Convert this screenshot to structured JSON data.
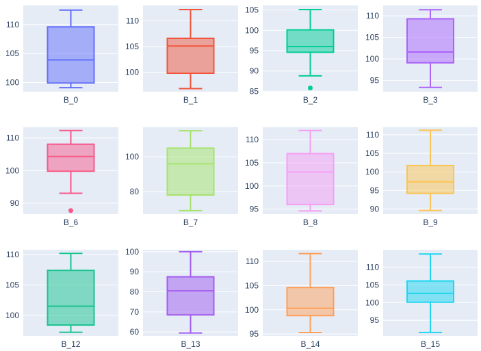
{
  "chart_data": [
    {
      "type": "box",
      "name": "B_0",
      "color": "#636efa",
      "fill": "rgba(99,110,250,0.5)",
      "stats": {
        "min": 99.1,
        "q1": 99.9,
        "median": 103.9,
        "q3": 109.6,
        "max": 112.5
      },
      "outliers": [],
      "yticks": [
        100,
        105,
        110
      ],
      "ylim": [
        98.4,
        113.3
      ]
    },
    {
      "type": "box",
      "name": "B_1",
      "color": "#ef553b",
      "fill": "rgba(239,85,59,0.5)",
      "stats": {
        "min": 96.8,
        "q1": 99.8,
        "median": 105.1,
        "q3": 106.6,
        "max": 112.2
      },
      "outliers": [],
      "yticks": [
        100,
        105,
        110
      ],
      "ylim": [
        96.2,
        113.0
      ]
    },
    {
      "type": "box",
      "name": "B_2",
      "color": "#00cc96",
      "fill": "rgba(0,204,150,0.5)",
      "stats": {
        "min": 88.8,
        "q1": 94.6,
        "median": 96.0,
        "q3": 100.1,
        "max": 105.1
      },
      "outliers": [
        85.8
      ],
      "yticks": [
        85,
        90,
        95,
        100,
        105
      ],
      "ylim": [
        84.9,
        106.1
      ]
    },
    {
      "type": "box",
      "name": "B_3",
      "color": "#ab63fa",
      "fill": "rgba(171,99,250,0.5)",
      "stats": {
        "min": 93.4,
        "q1": 99.1,
        "median": 101.6,
        "q3": 109.3,
        "max": 111.4
      },
      "outliers": [],
      "yticks": [
        95,
        100,
        105,
        110
      ],
      "ylim": [
        92.4,
        112.4
      ]
    },
    {
      "type": "box",
      "name": "B_6",
      "color": "#f7598a",
      "fill": "rgba(247,89,138,0.5)",
      "stats": {
        "min": 93.0,
        "q1": 99.8,
        "median": 104.3,
        "q3": 108.1,
        "max": 112.3
      },
      "outliers": [
        87.7
      ],
      "yticks": [
        90,
        100,
        110
      ],
      "ylim": [
        86.6,
        113.3
      ]
    },
    {
      "type": "box",
      "name": "B_7",
      "color": "#a6e36b",
      "fill": "rgba(166,227,107,0.5)",
      "stats": {
        "min": 69.0,
        "q1": 78.0,
        "median": 96.0,
        "q3": 105.0,
        "max": 115.0
      },
      "outliers": [],
      "yticks": [
        80,
        100
      ],
      "ylim": [
        67,
        117
      ]
    },
    {
      "type": "box",
      "name": "B_8",
      "color": "#f59ef3",
      "fill": "rgba(245,158,243,0.5)",
      "stats": {
        "min": 94.6,
        "q1": 96.0,
        "median": 103.0,
        "q3": 107.0,
        "max": 112.0
      },
      "outliers": [],
      "yticks": [
        95,
        100,
        105,
        110
      ],
      "ylim": [
        93.9,
        112.7
      ]
    },
    {
      "type": "box",
      "name": "B_9",
      "color": "#fcc452",
      "fill": "rgba(252,196,82,0.5)",
      "stats": {
        "min": 89.6,
        "q1": 94.2,
        "median": 97.3,
        "q3": 101.7,
        "max": 111.2
      },
      "outliers": [],
      "yticks": [
        90,
        95,
        100,
        105,
        110
      ],
      "ylim": [
        88.6,
        112.0
      ]
    },
    {
      "type": "box",
      "name": "B_12",
      "color": "#19c490",
      "fill": "rgba(25,196,144,0.5)",
      "stats": {
        "min": 97.2,
        "q1": 98.4,
        "median": 101.5,
        "q3": 107.4,
        "max": 110.2
      },
      "outliers": [],
      "yticks": [
        100,
        105,
        110
      ],
      "ylim": [
        96.6,
        110.8
      ]
    },
    {
      "type": "box",
      "name": "B_13",
      "color": "#a25cf0",
      "fill": "rgba(162,92,240,0.5)",
      "stats": {
        "min": 59.5,
        "q1": 68.5,
        "median": 80.5,
        "q3": 87.5,
        "max": 100.0
      },
      "outliers": [],
      "yticks": [
        60,
        70,
        80,
        90,
        100
      ],
      "ylim": [
        58,
        101
      ]
    },
    {
      "type": "box",
      "name": "B_14",
      "color": "#ff9f5a",
      "fill": "rgba(255,159,90,0.5)",
      "stats": {
        "min": 95.3,
        "q1": 98.8,
        "median": 100.3,
        "q3": 104.6,
        "max": 111.6
      },
      "outliers": [],
      "yticks": [
        95,
        100,
        105,
        110
      ],
      "ylim": [
        94.6,
        112.4
      ]
    },
    {
      "type": "box",
      "name": "B_15",
      "color": "#1ed6f0",
      "fill": "rgba(30,214,240,0.5)",
      "stats": {
        "min": 91.6,
        "q1": 100.1,
        "median": 102.6,
        "q3": 106.1,
        "max": 113.7
      },
      "outliers": [],
      "yticks": [
        95,
        100,
        105,
        110
      ],
      "ylim": [
        90.6,
        114.9
      ]
    }
  ]
}
